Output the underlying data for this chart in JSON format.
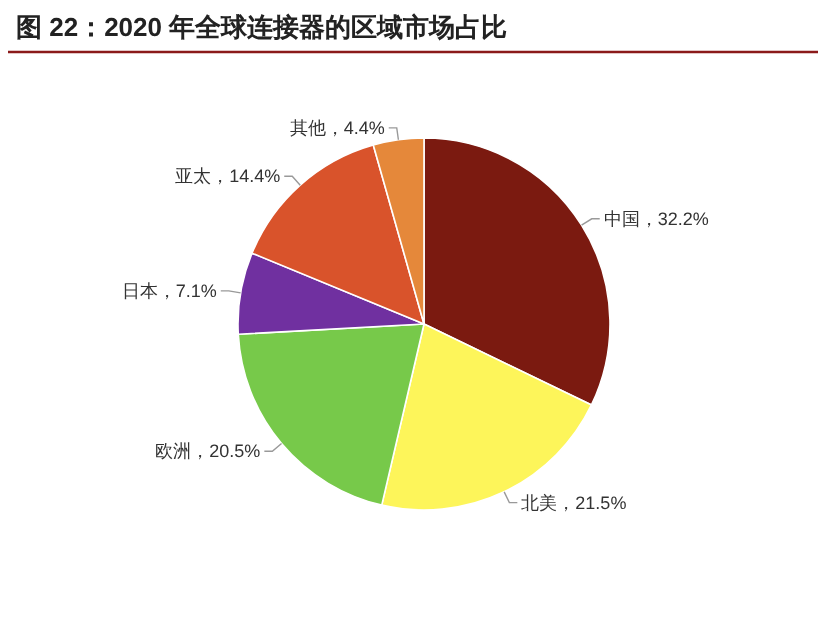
{
  "chart_data": {
    "type": "pie",
    "title": "图 22：2020 年全球连接器的区域市场占比",
    "categories": [
      "中国",
      "北美",
      "欧洲",
      "日本",
      "亚太",
      "其他"
    ],
    "values": [
      32.2,
      21.5,
      20.5,
      7.1,
      14.4,
      4.4
    ],
    "colors": [
      "#7b1a10",
      "#fdf55a",
      "#77c94a",
      "#7030a0",
      "#d9532b",
      "#e5883a"
    ],
    "value_labels": [
      "，32.2%",
      "，21.5%",
      "，20.5%",
      "，7.1%",
      "，14.4%",
      "，4.4%"
    ]
  }
}
